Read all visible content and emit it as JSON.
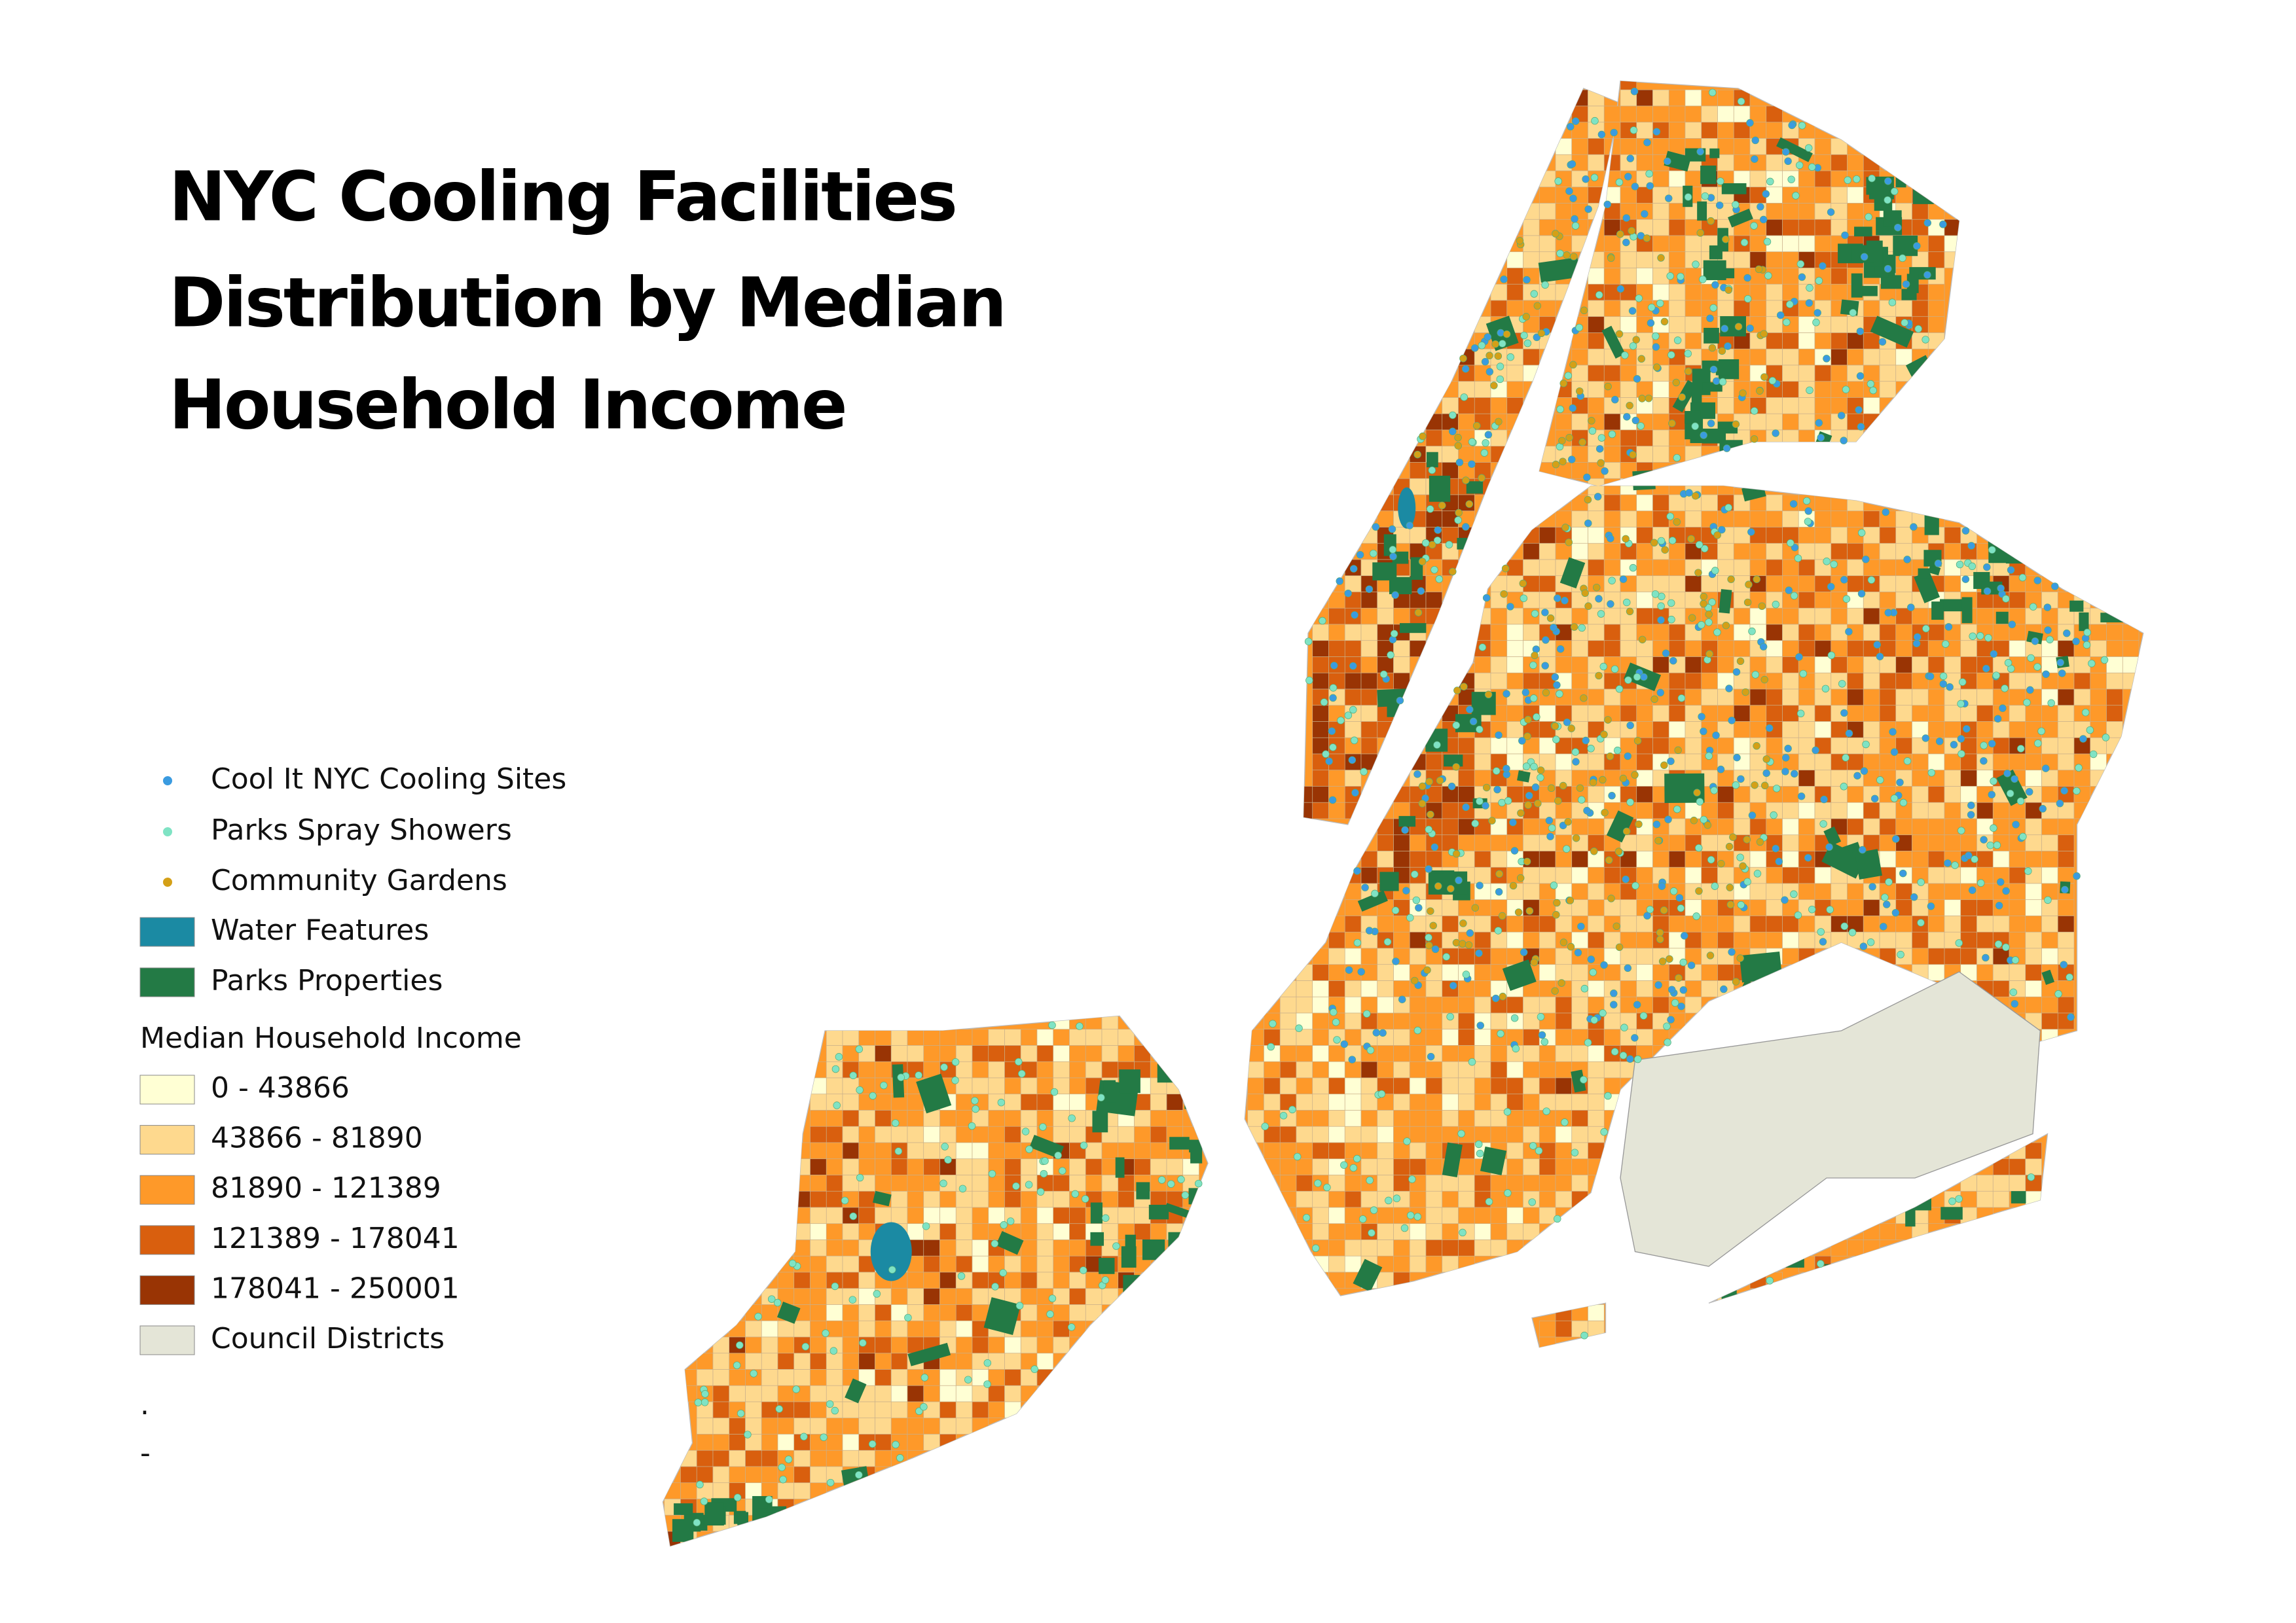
{
  "title": {
    "lines": [
      "NYC Cooling Facilities",
      "Distribution by Median",
      "Household Income"
    ]
  },
  "legend": {
    "layers": [
      {
        "label": "Cool It NYC Cooling Sites",
        "symbol": "point",
        "color": "#3a9be0"
      },
      {
        "label": "Parks Spray Showers",
        "symbol": "point",
        "color": "#7fe3c4"
      },
      {
        "label": "Community  Gardens",
        "symbol": "point",
        "color": "#d4a017"
      },
      {
        "label": "Water Features",
        "symbol": "fill",
        "color": "#1b8aa3"
      },
      {
        "label": "Parks Properties",
        "symbol": "fill",
        "color": "#237a45"
      }
    ],
    "income": {
      "title": "Median Household Income",
      "classes": [
        {
          "label": "0 - 43866",
          "color": "#ffffd4"
        },
        {
          "label": "43866 - 81890",
          "color": "#fed98e"
        },
        {
          "label": "81890 - 121389",
          "color": "#fe9929"
        },
        {
          "label": "121389 - 178041",
          "color": "#d95f0e"
        },
        {
          "label": "178041 - 250001",
          "color": "#993404"
        }
      ]
    },
    "council": {
      "label": "Council Districts",
      "color": "#e4e5d7"
    },
    "extra": [
      ".",
      "-"
    ]
  }
}
